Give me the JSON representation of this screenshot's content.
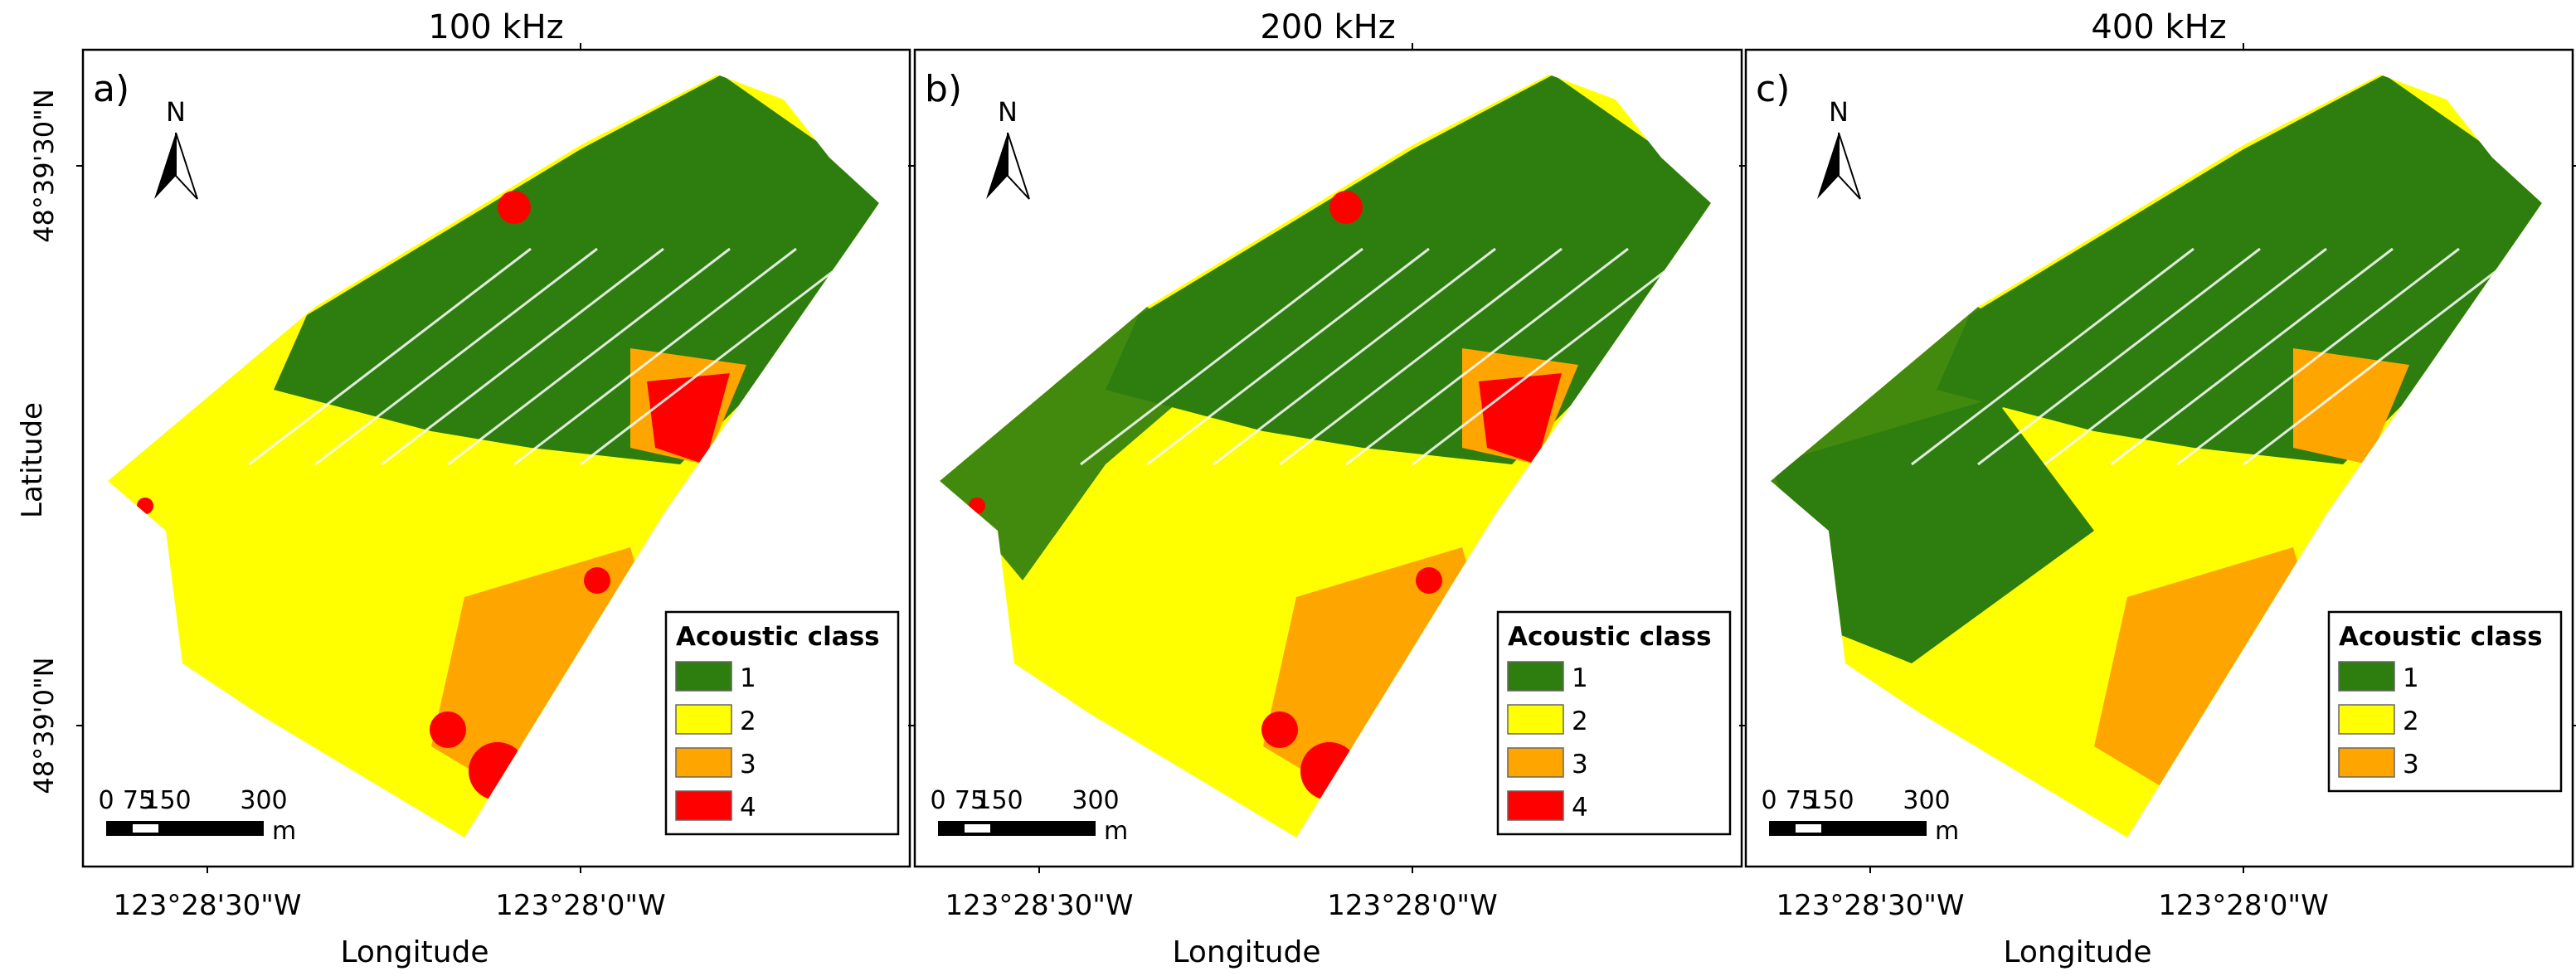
{
  "figure": {
    "y_label": "Latitude",
    "x_label": "Longitude",
    "lat_ticks": [
      "48°39'30\"N",
      "48°39'0\"N"
    ],
    "lon_ticks": [
      "123°28'30\"W",
      "123°28'0\"W"
    ]
  },
  "colors": {
    "class_1": "#2e7d0f",
    "class_2": "#ffff00",
    "class_3": "#ffa500",
    "class_4": "#ff0000",
    "frame": "#000000",
    "background": "#ffffff"
  },
  "north_arrow": {
    "label": "N",
    "icon": "north-arrow-icon"
  },
  "scale_bar": {
    "ticks": [
      "0",
      "75",
      "150",
      "300"
    ],
    "unit": "m"
  },
  "panels": [
    {
      "letter": "a)",
      "frequency": "100 kHz",
      "legend": {
        "title": "Acoustic class",
        "classes": [
          {
            "label": "1",
            "color": "#2e7d0f"
          },
          {
            "label": "2",
            "color": "#ffff00"
          },
          {
            "label": "3",
            "color": "#ffa500"
          },
          {
            "label": "4",
            "color": "#ff0000"
          }
        ]
      }
    },
    {
      "letter": "b)",
      "frequency": "200 kHz",
      "legend": {
        "title": "Acoustic class",
        "classes": [
          {
            "label": "1",
            "color": "#2e7d0f"
          },
          {
            "label": "2",
            "color": "#ffff00"
          },
          {
            "label": "3",
            "color": "#ffa500"
          },
          {
            "label": "4",
            "color": "#ff0000"
          }
        ]
      }
    },
    {
      "letter": "c)",
      "frequency": "400 kHz",
      "legend": {
        "title": "Acoustic class",
        "classes": [
          {
            "label": "1",
            "color": "#2e7d0f"
          },
          {
            "label": "2",
            "color": "#ffff00"
          },
          {
            "label": "3",
            "color": "#ffa500"
          }
        ]
      }
    }
  ]
}
